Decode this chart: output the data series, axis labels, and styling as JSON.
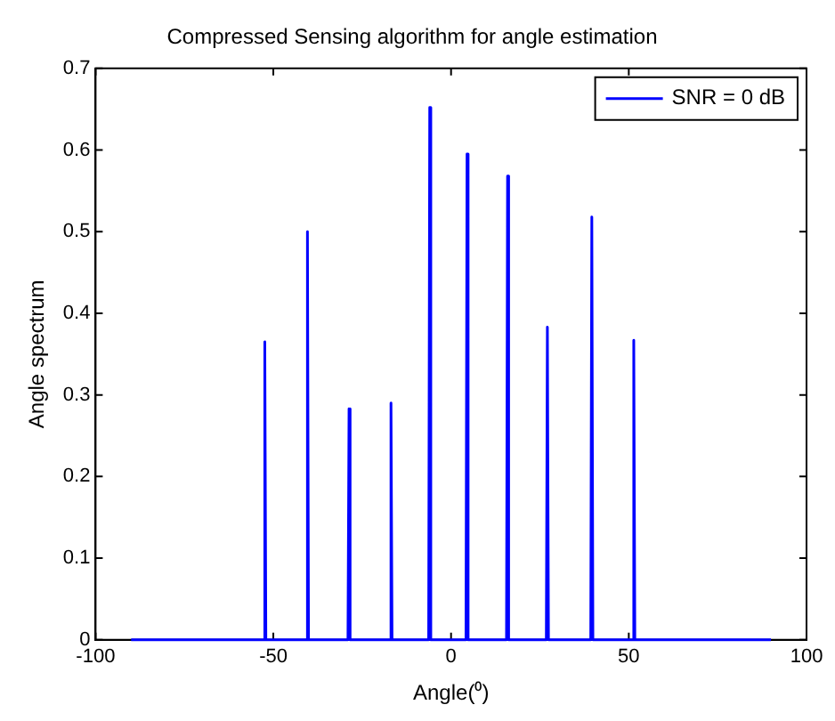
{
  "chart_data": {
    "type": "line",
    "title": "Compressed Sensing algorithm for angle estimation",
    "xlabel": "Angle(⁰)",
    "ylabel": "Angle spectrum",
    "series": [
      {
        "name": "SNR = 0 dB",
        "color": "#0000ff",
        "x": [
          -90,
          -52.7,
          -52.4,
          -52.1,
          -40.7,
          -40.4,
          -40.1,
          -29,
          -28.7,
          -28.4,
          -17.2,
          -16.9,
          -16.6,
          -6.3,
          -6,
          -5.7,
          4.2,
          4.5,
          4.8,
          15.6,
          15.9,
          16.2,
          26.8,
          27.1,
          27.4,
          39.3,
          39.6,
          39.9,
          51.1,
          51.4,
          51.7,
          90
        ],
        "values": [
          0,
          0,
          0.365,
          0,
          0,
          0.5,
          0,
          0,
          0.283,
          0,
          0,
          0.29,
          0,
          0,
          0.652,
          0,
          0,
          0.595,
          0,
          0,
          0.568,
          0,
          0,
          0.383,
          0,
          0,
          0.518,
          0,
          0,
          0.367,
          0,
          0
        ]
      }
    ],
    "xlim": [
      -100,
      100
    ],
    "xticks": [
      -100,
      -50,
      0,
      50,
      100
    ],
    "ylim": [
      0,
      0.7
    ],
    "yticks": [
      0,
      0.1,
      0.2,
      0.3,
      0.4,
      0.5,
      0.6,
      0.7
    ],
    "grid": false,
    "legend": "top right",
    "marker": "none",
    "line_style": "solid"
  }
}
